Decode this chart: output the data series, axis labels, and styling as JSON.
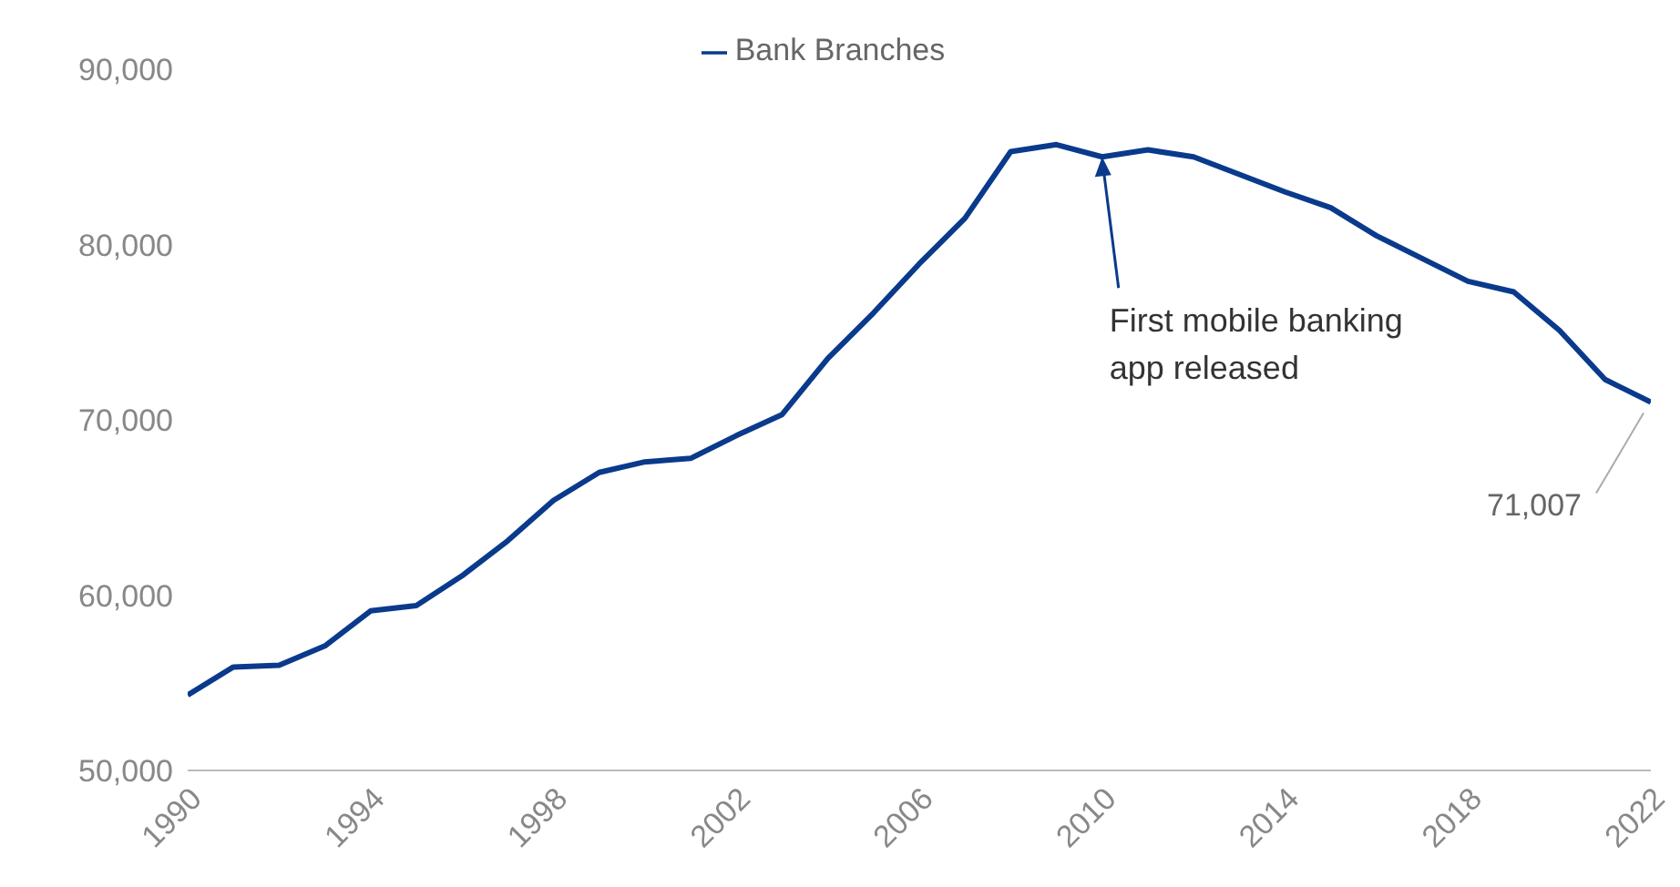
{
  "chart_data": {
    "type": "line",
    "x": [
      1990,
      1991,
      1992,
      1993,
      1994,
      1995,
      1996,
      1997,
      1998,
      1999,
      2000,
      2001,
      2002,
      2003,
      2004,
      2005,
      2006,
      2007,
      2008,
      2009,
      2010,
      2011,
      2012,
      2013,
      2014,
      2015,
      2016,
      2017,
      2018,
      2019,
      2020,
      2021,
      2022
    ],
    "series": [
      {
        "name": "Bank Branches",
        "color": "#0a3a8c",
        "values": [
          54300,
          55900,
          56000,
          57100,
          59100,
          59400,
          61100,
          63100,
          65400,
          67000,
          67600,
          67800,
          69100,
          70300,
          73500,
          76100,
          78900,
          81500,
          85300,
          85700,
          85000,
          85400,
          85000,
          84000,
          83000,
          82100,
          80500,
          79200,
          77900,
          77300,
          75100,
          72300,
          71007
        ],
        "value_labels": [
          null,
          null,
          null,
          null,
          null,
          null,
          null,
          null,
          null,
          null,
          null,
          null,
          null,
          null,
          null,
          null,
          null,
          null,
          null,
          null,
          null,
          null,
          null,
          null,
          null,
          null,
          null,
          null,
          null,
          null,
          null,
          null,
          "71,007"
        ]
      }
    ],
    "xlim": [
      1990,
      2022
    ],
    "xticks": [
      1990,
      1994,
      1998,
      2002,
      2006,
      2010,
      2014,
      2018,
      2022
    ],
    "ylim": [
      50000,
      90000
    ],
    "yticks": [
      {
        "value": 50000,
        "label": "50,000"
      },
      {
        "value": 60000,
        "label": "60,000"
      },
      {
        "value": 70000,
        "label": "70,000"
      },
      {
        "value": 80000,
        "label": "80,000"
      },
      {
        "value": 90000,
        "label": "90,000"
      }
    ],
    "annotations": [
      {
        "text": "First mobile banking app released",
        "x": 2010,
        "y": 85000
      }
    ],
    "grid": false,
    "legend": "top",
    "marker": "none",
    "line_style": "solid"
  }
}
